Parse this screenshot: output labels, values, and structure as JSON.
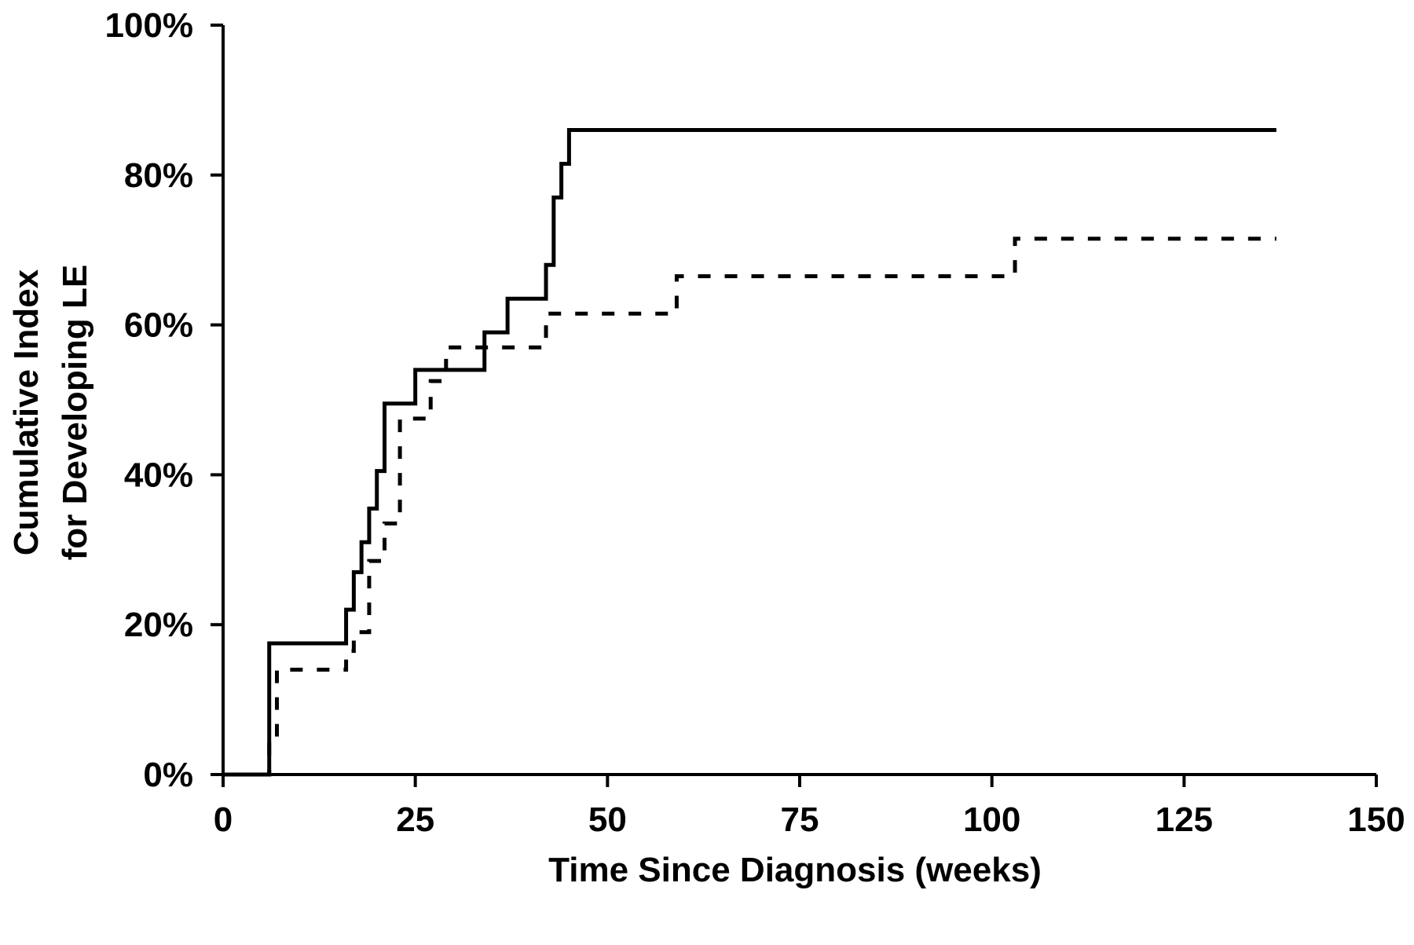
{
  "chart_data": {
    "type": "line",
    "step": true,
    "title": "",
    "xlabel": "Time Since Diagnosis (weeks)",
    "ylabel_lines": [
      "Cumulative Index",
      "for Developing LE"
    ],
    "xlim": [
      0,
      150
    ],
    "ylim": [
      0,
      100
    ],
    "xticks": [
      0,
      25,
      50,
      75,
      100,
      125,
      150
    ],
    "yticks": [
      0,
      20,
      40,
      60,
      80,
      100
    ],
    "xtick_labels": [
      "0",
      "25",
      "50",
      "75",
      "100",
      "125",
      "150"
    ],
    "ytick_labels": [
      "0%",
      "20%",
      "40%",
      "60%",
      "80%",
      "100%"
    ],
    "grid": false,
    "legend": "none",
    "series": [
      {
        "style": "solid",
        "color": "#000000",
        "x": [
          0,
          6,
          16,
          17,
          18,
          19,
          20,
          21,
          25,
          34,
          37,
          42,
          43,
          44,
          45,
          137
        ],
        "y": [
          0,
          17.5,
          22,
          27,
          31,
          35.5,
          40.5,
          49.5,
          54,
          59,
          63.5,
          68,
          77,
          81.5,
          86,
          86
        ]
      },
      {
        "style": "dashed",
        "color": "#000000",
        "x": [
          5,
          6,
          7,
          15,
          16,
          17,
          19,
          21,
          23,
          26,
          27,
          29,
          42,
          59,
          103,
          137
        ],
        "y": [
          0,
          4.5,
          14,
          14,
          16.5,
          19,
          28.5,
          33.5,
          47.5,
          47.5,
          52.5,
          57,
          61.5,
          66.5,
          71.5,
          71.5
        ]
      }
    ]
  }
}
